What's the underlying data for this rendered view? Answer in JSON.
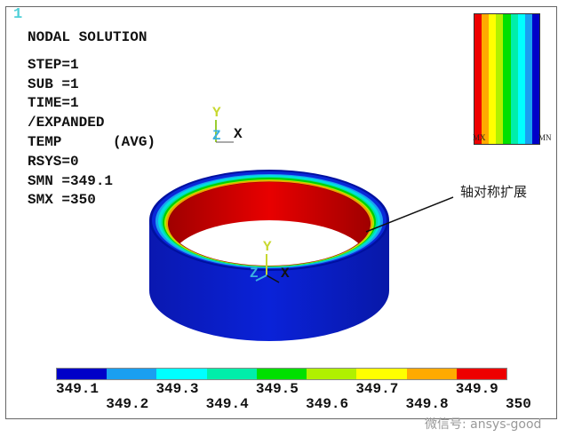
{
  "window_number": "1",
  "info": {
    "title": "NODAL SOLUTION",
    "lines": [
      "STEP=1",
      "SUB =1",
      "TIME=1",
      "/EXPANDED",
      "TEMP      (AVG)",
      "RSYS=0",
      "SMN =349.1",
      "SMX =350"
    ]
  },
  "triad": {
    "x": "X",
    "y": "Y",
    "z": "Z"
  },
  "legend_top": {
    "mx": "MX",
    "mn": "MN"
  },
  "annotation": "轴对称扩展",
  "watermark": "微信号: ansys-good",
  "colors": [
    "#0000c8",
    "#1a9ff0",
    "#00ffff",
    "#00eeaa",
    "#00e000",
    "#b0f000",
    "#ffff00",
    "#ffaa00",
    "#ee0000"
  ],
  "contour_labels_row1": [
    "349.1",
    "349.3",
    "349.5",
    "349.7",
    "349.9"
  ],
  "contour_labels_row2": [
    "349.2",
    "349.4",
    "349.6",
    "349.8",
    "350"
  ]
}
